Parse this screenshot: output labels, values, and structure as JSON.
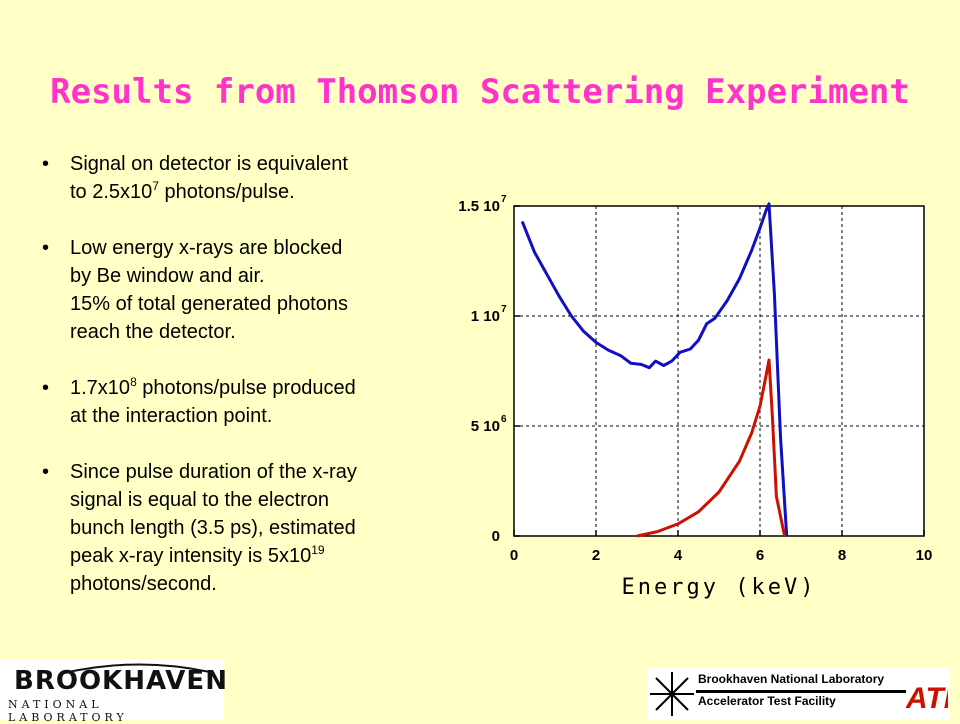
{
  "slide": {
    "title": "Results from Thomson Scattering Experiment"
  },
  "bullets": [
    {
      "lines": [
        {
          "text": "Signal on detector is equivalent"
        },
        {
          "text": "to 2.5x10",
          "sup": "7",
          "after": " photons/pulse."
        }
      ]
    },
    {
      "lines": [
        {
          "text": "Low energy x-rays are blocked"
        },
        {
          "text": "by Be window and air."
        },
        {
          "text": "15% of total generated photons"
        },
        {
          "text": "reach the  detector."
        }
      ]
    },
    {
      "lines": [
        {
          "text": "1.7x10",
          "sup": "8",
          "after": " photons/pulse produced"
        },
        {
          "text": "at the interaction point."
        }
      ]
    },
    {
      "lines": [
        {
          "text": "Since pulse duration of the x-ray"
        },
        {
          "text": "signal is equal to the electron"
        },
        {
          "text": "bunch length (3.5 ps), estimated"
        },
        {
          "text": "peak x-ray intensity is 5x10",
          "sup": "19",
          "after": ""
        },
        {
          "text": "photons/second."
        }
      ]
    }
  ],
  "chart_data": {
    "type": "line",
    "xlabel": "Energy (keV)",
    "ylabel": "",
    "xlim": [
      0,
      10
    ],
    "ylim": [
      0,
      15000000
    ],
    "x_ticks": [
      "0",
      "2",
      "4",
      "6",
      "8",
      "10"
    ],
    "y_ticks": [
      {
        "value": 0,
        "mantissa": "0",
        "exp": ""
      },
      {
        "value": 5000000,
        "mantissa": "5 10",
        "exp": "6"
      },
      {
        "value": 10000000,
        "mantissa": "1 10",
        "exp": "7"
      },
      {
        "value": 15000000,
        "mantissa": "1.5 10",
        "exp": "7"
      }
    ],
    "grid": "dashed",
    "series": [
      {
        "color": "#1010c0",
        "points": [
          [
            0.2,
            14300000
          ],
          [
            0.5,
            12900000
          ],
          [
            0.8,
            11900000
          ],
          [
            1.1,
            10900000
          ],
          [
            1.4,
            10000000
          ],
          [
            1.7,
            9300000
          ],
          [
            2.0,
            8800000
          ],
          [
            2.3,
            8450000
          ],
          [
            2.6,
            8200000
          ],
          [
            2.85,
            7850000
          ],
          [
            3.1,
            7800000
          ],
          [
            3.3,
            7650000
          ],
          [
            3.45,
            7950000
          ],
          [
            3.65,
            7750000
          ],
          [
            3.85,
            7950000
          ],
          [
            4.05,
            8350000
          ],
          [
            4.3,
            8500000
          ],
          [
            4.5,
            8900000
          ],
          [
            4.7,
            9650000
          ],
          [
            4.9,
            9900000
          ],
          [
            5.2,
            10700000
          ],
          [
            5.5,
            11700000
          ],
          [
            5.8,
            13000000
          ],
          [
            6.0,
            14000000
          ],
          [
            6.15,
            14800000
          ],
          [
            6.22,
            15100000
          ],
          [
            6.35,
            11000000
          ],
          [
            6.5,
            4500000
          ],
          [
            6.65,
            0
          ]
        ]
      },
      {
        "color": "#cc1100",
        "points": [
          [
            3.0,
            0
          ],
          [
            3.5,
            200000
          ],
          [
            4.0,
            550000
          ],
          [
            4.5,
            1100000
          ],
          [
            5.0,
            2000000
          ],
          [
            5.5,
            3400000
          ],
          [
            5.8,
            4700000
          ],
          [
            6.0,
            5900000
          ],
          [
            6.15,
            7300000
          ],
          [
            6.22,
            8000000
          ],
          [
            6.3,
            5500000
          ],
          [
            6.4,
            1800000
          ],
          [
            6.6,
            0
          ]
        ]
      }
    ]
  },
  "logos": {
    "left": {
      "word": "BROOKHAVEN",
      "sub": "NATIONAL LABORATORY"
    },
    "right": {
      "line1": "Brookhaven National Laboratory",
      "line2": "Accelerator Test Facility",
      "mark": "ATF"
    }
  }
}
